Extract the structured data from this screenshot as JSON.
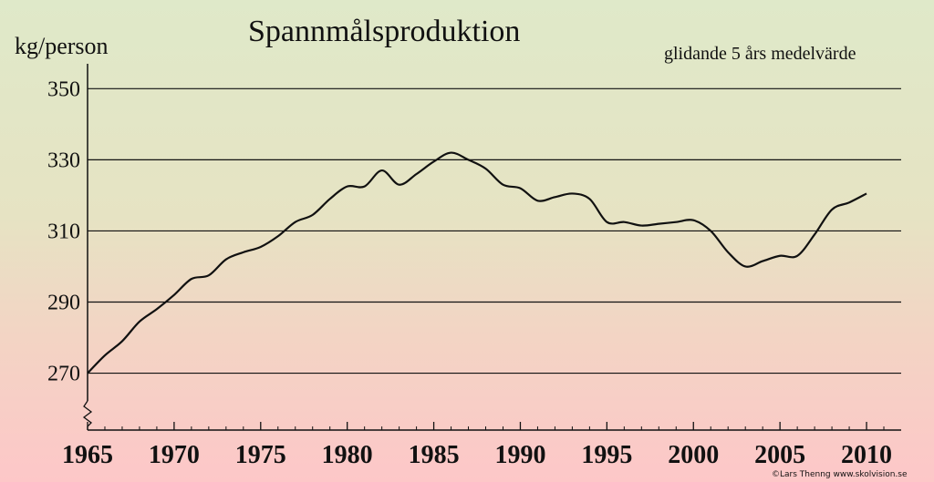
{
  "chart_data": {
    "type": "line",
    "title": "Spannmålsproduktion",
    "subtitle": "glidande 5 års medelvärde",
    "ylabel": "kg/person",
    "xlabel": "",
    "xlim": [
      1965,
      2012
    ],
    "ylim": [
      254,
      357
    ],
    "yticks": [
      270,
      290,
      310,
      330,
      350
    ],
    "xticks": [
      1965,
      1970,
      1975,
      1980,
      1985,
      1990,
      1995,
      2000,
      2005,
      2010
    ],
    "grid": "horizontal",
    "line_color": "#111111",
    "series": [
      {
        "x": [
          1965,
          1966,
          1967,
          1968,
          1969,
          1970,
          1971,
          1972,
          1973,
          1974,
          1975,
          1976,
          1977,
          1978,
          1979,
          1980,
          1981,
          1982,
          1983,
          1984,
          1985,
          1986,
          1987,
          1988,
          1989,
          1990,
          1991,
          1992,
          1993,
          1994,
          1995,
          1996,
          1997,
          1998,
          1999,
          2000,
          2001,
          2002,
          2003,
          2004,
          2005,
          2006,
          2007,
          2008,
          2009,
          2010
        ],
        "y": [
          270,
          275,
          279,
          284.5,
          288,
          292,
          296.5,
          297.5,
          302,
          304,
          305.5,
          308.5,
          312.5,
          314.5,
          319,
          322.5,
          322.5,
          327,
          323,
          326,
          329.5,
          332,
          330,
          327.5,
          323,
          322,
          318.5,
          319.5,
          320.5,
          319,
          312.5,
          312.5,
          311.5,
          312,
          312.5,
          313,
          310,
          304,
          300,
          301.5,
          303,
          303,
          309,
          316,
          318,
          320.5
        ]
      }
    ]
  },
  "footer_text": "©Lars Thenng   www.skolvision.se"
}
